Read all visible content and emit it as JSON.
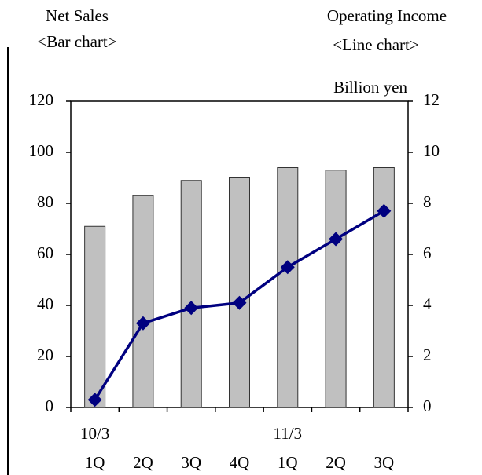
{
  "chart_data": {
    "type": "bar-line",
    "left_title": "Net Sales",
    "left_subtitle": "<Bar chart>",
    "right_title": "Operating Income",
    "right_subtitle": "<Line chart>",
    "unit_label": "Billion yen",
    "categories": [
      "1Q",
      "2Q",
      "3Q",
      "4Q",
      "1Q",
      "2Q",
      "3Q"
    ],
    "category_groups": [
      "10/3",
      null,
      null,
      null,
      "11/3",
      null,
      null
    ],
    "series": [
      {
        "name": "Net Sales",
        "type": "bar",
        "color": "#c0c0c0",
        "values": [
          71,
          83,
          89,
          90,
          94,
          93,
          94
        ]
      },
      {
        "name": "Operating Income",
        "type": "line",
        "axis": "y2",
        "color": "#000080",
        "values": [
          0.3,
          3.3,
          3.9,
          4.1,
          5.5,
          6.6,
          7.7
        ]
      }
    ],
    "ylim": [
      0,
      120
    ],
    "yticks": [
      0,
      20,
      40,
      60,
      80,
      100,
      120
    ],
    "y2lim": [
      0,
      12
    ],
    "y2ticks": [
      0,
      2,
      4,
      6,
      8,
      10,
      12
    ]
  }
}
